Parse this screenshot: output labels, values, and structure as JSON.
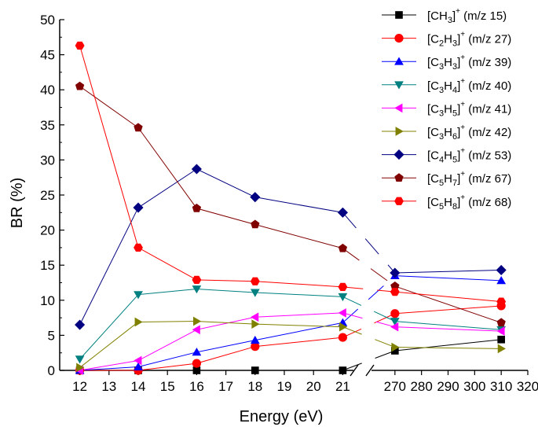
{
  "chart_data": {
    "type": "line",
    "xlabel": "Energy (eV)",
    "ylabel": "BR (%)",
    "ylim": [
      0,
      50
    ],
    "y_ticks": [
      0,
      5,
      10,
      15,
      20,
      25,
      30,
      35,
      40,
      45,
      50
    ],
    "x_axis": {
      "broken": true,
      "segment1": {
        "range": [
          11.5,
          21.5
        ],
        "ticks": [
          "12",
          "13",
          "14",
          "15",
          "16",
          "17",
          "18",
          "19",
          "20",
          "21"
        ]
      },
      "segment2": {
        "range": [
          260,
          320
        ],
        "ticks": [
          "270",
          "280",
          "290",
          "300",
          "310",
          "320"
        ]
      }
    },
    "grid": false,
    "legend_position": "top-right",
    "x": [
      12,
      14,
      16,
      18,
      21,
      270,
      310
    ],
    "series": [
      {
        "label_parts": [
          [
            "C",
            "n"
          ],
          [
            "H",
            "n"
          ],
          [
            "3",
            "s"
          ]
        ],
        "mz": "(m/z 15)",
        "color": "#000000",
        "marker": "square",
        "values": [
          0,
          0,
          0,
          0,
          0,
          2.8,
          4.4
        ]
      },
      {
        "label_parts": [
          [
            "C",
            "n"
          ],
          [
            "2",
            "s"
          ],
          [
            "H",
            "n"
          ],
          [
            "3",
            "s"
          ]
        ],
        "mz": "(m/z 27)",
        "color": "#ff0000",
        "marker": "circle",
        "values": [
          0,
          0,
          1.0,
          3.4,
          4.7,
          8.1,
          9.2
        ]
      },
      {
        "label_parts": [
          [
            "C",
            "n"
          ],
          [
            "3",
            "s"
          ],
          [
            "H",
            "n"
          ],
          [
            "3",
            "s"
          ]
        ],
        "mz": "(m/z 39)",
        "color": "#0000ff",
        "marker": "triangle-up",
        "values": [
          0,
          0.5,
          2.6,
          4.3,
          6.8,
          13.5,
          12.8
        ]
      },
      {
        "label_parts": [
          [
            "C",
            "n"
          ],
          [
            "3",
            "s"
          ],
          [
            "H",
            "n"
          ],
          [
            "4",
            "s"
          ]
        ],
        "mz": "(m/z 40)",
        "color": "#008080",
        "marker": "triangle-down",
        "values": [
          1.6,
          10.8,
          11.6,
          11.1,
          10.5,
          7.0,
          5.8
        ]
      },
      {
        "label_parts": [
          [
            "C",
            "n"
          ],
          [
            "3",
            "s"
          ],
          [
            "H",
            "n"
          ],
          [
            "5",
            "s"
          ]
        ],
        "mz": "(m/z 41)",
        "color": "#ff00ff",
        "marker": "triangle-left",
        "values": [
          0,
          1.4,
          5.8,
          7.6,
          8.2,
          6.2,
          5.6
        ]
      },
      {
        "label_parts": [
          [
            "C",
            "n"
          ],
          [
            "3",
            "s"
          ],
          [
            "H",
            "n"
          ],
          [
            "6",
            "s"
          ]
        ],
        "mz": "(m/z 42)",
        "color": "#808000",
        "marker": "triangle-right",
        "values": [
          0.4,
          6.9,
          7.0,
          6.6,
          6.2,
          3.3,
          3.1
        ]
      },
      {
        "label_parts": [
          [
            "C",
            "n"
          ],
          [
            "4",
            "s"
          ],
          [
            "H",
            "n"
          ],
          [
            "5",
            "s"
          ]
        ],
        "mz": "(m/z 53)",
        "color": "#000080",
        "marker": "diamond",
        "values": [
          6.5,
          23.2,
          28.7,
          24.7,
          22.5,
          13.9,
          14.3
        ]
      },
      {
        "label_parts": [
          [
            "C",
            "n"
          ],
          [
            "5",
            "s"
          ],
          [
            "H",
            "n"
          ],
          [
            "7",
            "s"
          ]
        ],
        "mz": "(m/z 67)",
        "color": "#800000",
        "marker": "pentagon",
        "values": [
          40.5,
          34.6,
          23.1,
          20.8,
          17.4,
          12.0,
          6.8
        ]
      },
      {
        "label_parts": [
          [
            "C",
            "n"
          ],
          [
            "5",
            "s"
          ],
          [
            "H",
            "n"
          ],
          [
            "8",
            "s"
          ]
        ],
        "mz": "(m/z 68)",
        "color": "#ff0000",
        "marker": "hexagon",
        "values": [
          46.3,
          17.5,
          12.9,
          12.7,
          11.9,
          11.2,
          9.8
        ]
      }
    ]
  }
}
